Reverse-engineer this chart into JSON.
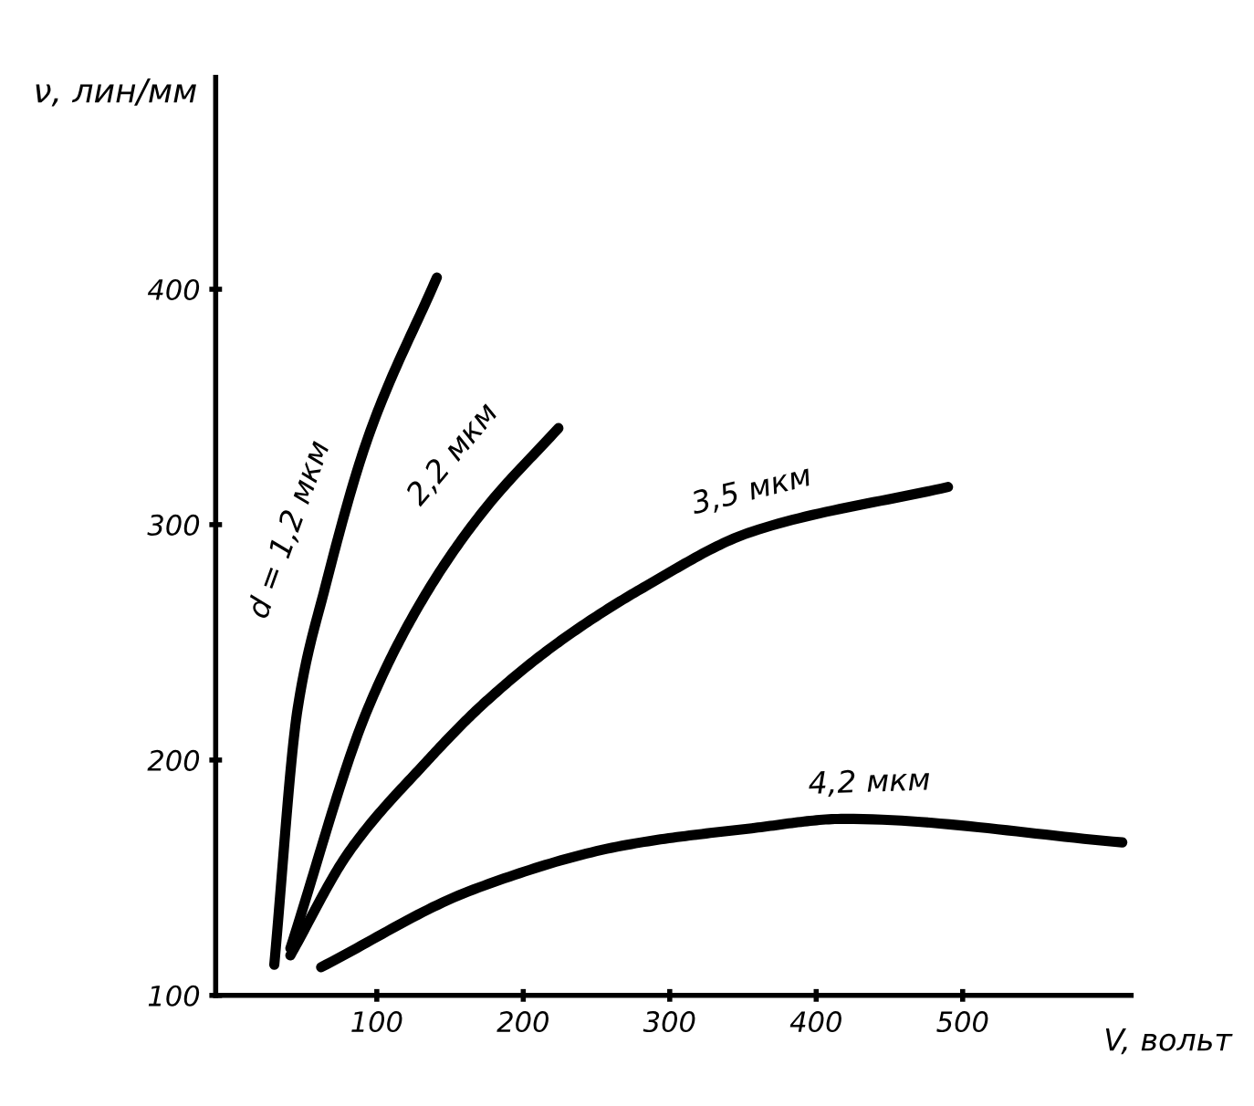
{
  "chart_data": {
    "type": "line",
    "xlabel": "V, вольт",
    "ylabel": "ν, лин/мм",
    "xlim": [
      -10,
      615
    ],
    "ylim": [
      100,
      490
    ],
    "xticks": [
      100,
      200,
      300,
      400,
      500
    ],
    "yticks": [
      100,
      200,
      300,
      400
    ],
    "grid": false,
    "legend": false,
    "marker": "none",
    "line_style": "solid",
    "series": [
      {
        "name": "d = 1,2 мкм",
        "color": "#000000",
        "x": [
          30,
          46,
          65,
          94,
          141
        ],
        "values": [
          113,
          222,
          274,
          337,
          405
        ]
      },
      {
        "name": "2,2 мкм",
        "color": "#000000",
        "x": [
          41,
          94,
          132,
          173,
          224
        ],
        "values": [
          120,
          222,
          269,
          306,
          341
        ]
      },
      {
        "name": "3,5 мкм",
        "color": "#000000",
        "x": [
          41,
          81,
          132,
          173,
          224,
          284,
          356,
          490
        ],
        "values": [
          117,
          161,
          198,
          224,
          250,
          274,
          297,
          316
        ]
      },
      {
        "name": "4,2 мкм",
        "color": "#000000",
        "x": [
          62,
          166,
          271,
          356,
          419,
          609
        ],
        "values": [
          112,
          145,
          164,
          171,
          175,
          165
        ]
      }
    ]
  }
}
